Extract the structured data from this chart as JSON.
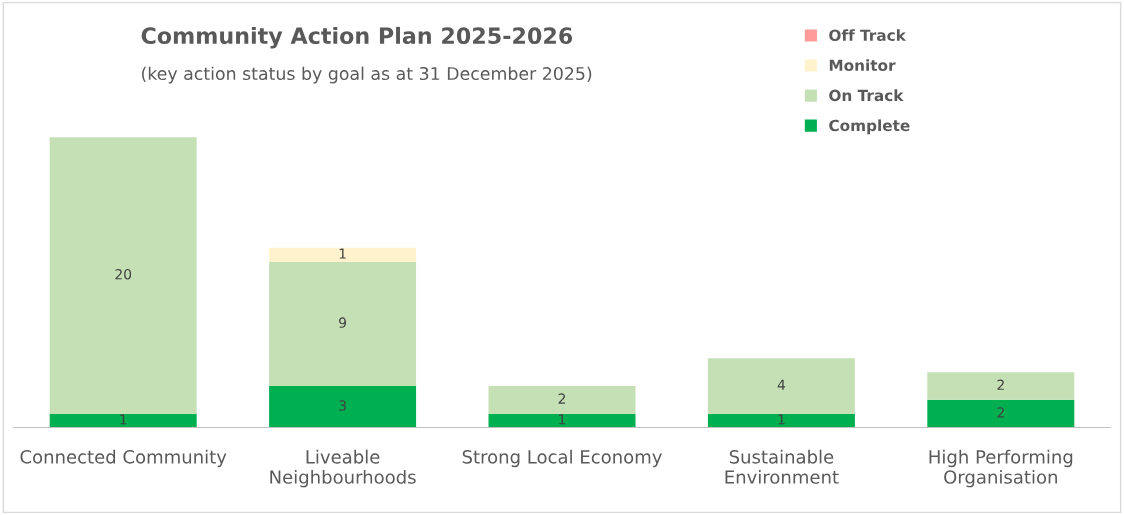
{
  "chart_data": {
    "type": "bar",
    "title": "Community Action Plan 2025-2026",
    "subtitle": "(key action status by goal as at 31 December 2025)",
    "categories": [
      "Connected Community",
      "Liveable\nNeighbourhoods",
      "Strong Local Economy",
      "Sustainable\nEnvironment",
      "High Performing\nOrganisation"
    ],
    "stacked": true,
    "data_labels": true,
    "legend": "top right",
    "series": [
      {
        "name": "Complete",
        "color": "#00b050",
        "values": [
          1,
          3,
          1,
          1,
          2
        ]
      },
      {
        "name": "On Track",
        "color": "#c5e0b4",
        "values": [
          20,
          9,
          2,
          4,
          2
        ]
      },
      {
        "name": "Monitor",
        "color": "#fff2cc",
        "values": [
          null,
          1,
          null,
          null,
          null
        ]
      },
      {
        "name": "Off Track",
        "color": "#ff9b9b",
        "values": [
          null,
          null,
          null,
          null,
          null
        ]
      }
    ]
  }
}
